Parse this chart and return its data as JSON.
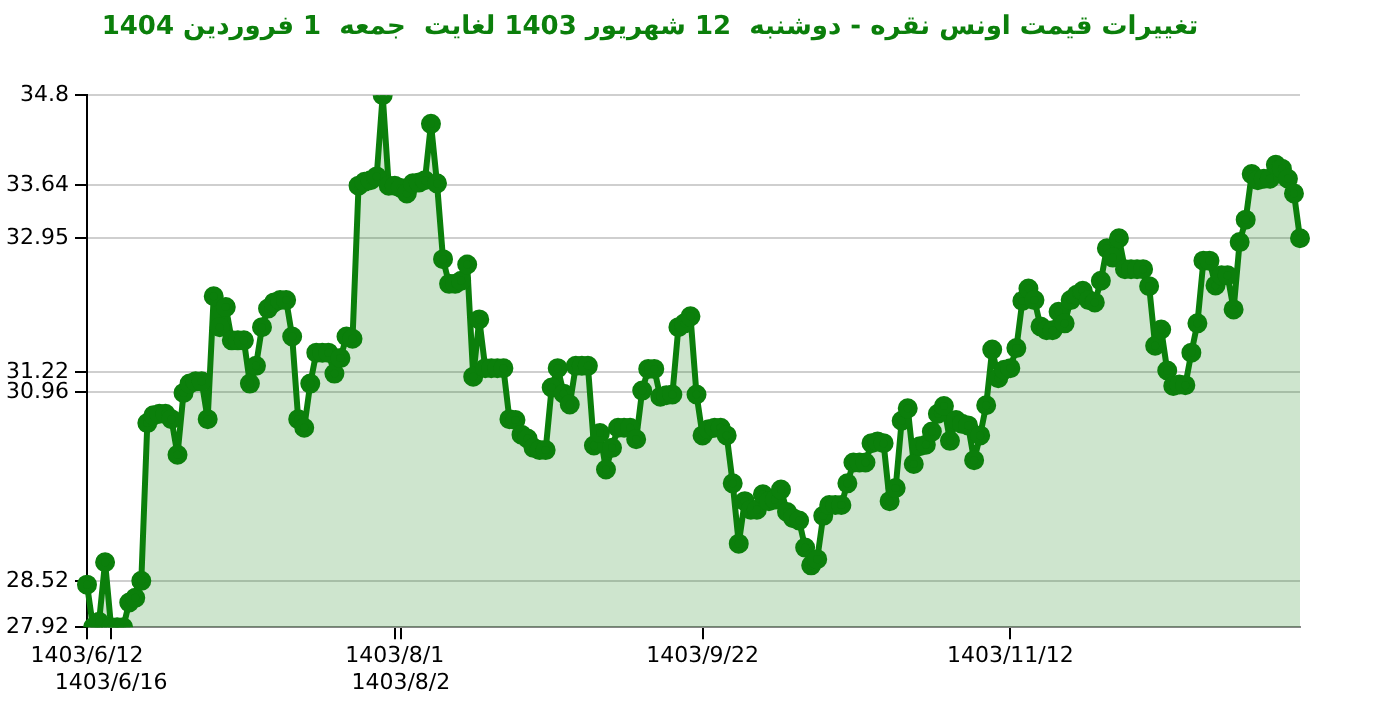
{
  "chart_data": {
    "type": "area",
    "title": "تغییرات قیمت اونس نقره - دوشنبه  12 شهریور 1403 لغایت  جمعه  1 فروردین 1404",
    "categories": [
      "1403/6/12",
      null,
      null,
      null,
      "1403/6/16",
      null,
      null,
      null,
      null,
      null,
      null,
      null,
      null,
      null,
      null,
      null,
      null,
      null,
      null,
      null,
      null,
      null,
      null,
      null,
      null,
      null,
      null,
      null,
      null,
      null,
      null,
      null,
      null,
      null,
      null,
      null,
      null,
      null,
      null,
      null,
      null,
      null,
      null,
      null,
      null,
      null,
      null,
      null,
      null,
      null,
      null,
      "1403/8/1",
      "1403/8/2",
      null,
      null,
      null,
      null,
      null,
      null,
      null,
      null,
      null,
      null,
      null,
      null,
      null,
      null,
      null,
      null,
      null,
      null,
      null,
      null,
      null,
      null,
      null,
      null,
      null,
      null,
      null,
      null,
      null,
      null,
      null,
      null,
      null,
      null,
      null,
      null,
      null,
      null,
      null,
      null,
      null,
      null,
      null,
      null,
      null,
      null,
      null,
      null,
      null,
      "1403/9/22",
      null,
      null,
      null,
      null,
      null,
      null,
      null,
      null,
      null,
      null,
      null,
      null,
      null,
      null,
      null,
      null,
      null,
      null,
      null,
      null,
      null,
      null,
      null,
      null,
      null,
      null,
      null,
      null,
      null,
      null,
      null,
      null,
      null,
      null,
      null,
      null,
      null,
      null,
      null,
      null,
      null,
      null,
      null,
      null,
      null,
      null,
      null,
      null,
      null,
      null,
      "1403/11/12",
      null,
      null,
      null,
      null,
      null,
      null,
      null,
      null,
      null,
      null,
      null,
      null,
      null,
      null,
      null,
      null,
      null,
      null,
      null,
      null,
      null,
      null,
      null,
      null,
      null,
      null,
      null,
      null,
      null,
      null,
      null,
      null,
      null,
      null,
      null,
      null,
      null,
      null,
      null,
      null,
      null,
      null,
      null,
      null,
      null,
      null,
      null,
      null
    ],
    "series": [
      {
        "color": "#0b7f0b",
        "values": [
          28.47,
          27.92,
          27.99,
          28.76,
          27.92,
          27.92,
          27.92,
          28.24,
          28.3,
          28.52,
          30.56,
          30.66,
          30.68,
          30.68,
          30.61,
          30.15,
          30.95,
          31.07,
          31.1,
          31.1,
          30.61,
          32.2,
          31.8,
          32.06,
          31.63,
          31.63,
          31.63,
          31.07,
          31.3,
          31.8,
          32.04,
          32.12,
          32.15,
          32.15,
          31.68,
          30.61,
          30.5,
          31.07,
          31.47,
          31.47,
          31.47,
          31.2,
          31.4,
          31.68,
          31.65,
          33.63,
          33.68,
          33.7,
          33.75,
          34.8,
          33.63,
          33.63,
          33.6,
          33.53,
          33.66,
          33.67,
          33.7,
          34.43,
          33.66,
          32.68,
          32.36,
          32.36,
          32.4,
          32.61,
          31.16,
          31.9,
          31.27,
          31.27,
          31.27,
          31.27,
          30.61,
          30.6,
          30.41,
          30.36,
          30.24,
          30.21,
          30.21,
          31.02,
          31.27,
          30.94,
          30.8,
          31.3,
          31.3,
          31.3,
          30.27,
          30.43,
          29.96,
          30.24,
          30.5,
          30.5,
          30.5,
          30.35,
          30.98,
          31.26,
          31.26,
          30.9,
          30.92,
          30.93,
          31.8,
          31.85,
          31.94,
          30.93,
          30.4,
          30.48,
          30.5,
          30.5,
          30.4,
          29.78,
          29.0,
          29.55,
          29.44,
          29.44,
          29.64,
          29.55,
          29.57,
          29.7,
          29.41,
          29.33,
          29.3,
          28.95,
          28.72,
          28.8,
          29.36,
          29.5,
          29.5,
          29.5,
          29.78,
          30.05,
          30.05,
          30.05,
          30.3,
          30.32,
          30.3,
          29.55,
          29.72,
          30.59,
          30.75,
          30.03,
          30.26,
          30.28,
          30.45,
          30.68,
          30.78,
          30.33,
          30.6,
          30.55,
          30.53,
          30.08,
          30.4,
          30.79,
          31.51,
          31.14,
          31.25,
          31.27,
          31.53,
          32.14,
          32.3,
          32.15,
          31.81,
          31.76,
          31.76,
          32.0,
          31.85,
          32.15,
          32.22,
          32.27,
          32.15,
          32.12,
          32.4,
          32.82,
          32.7,
          32.95,
          32.55,
          32.55,
          32.55,
          32.55,
          32.33,
          31.56,
          31.77,
          31.24,
          31.04,
          31.06,
          31.05,
          31.47,
          31.85,
          32.66,
          32.66,
          32.34,
          32.47,
          32.47,
          32.03,
          32.9,
          33.19,
          33.78,
          33.7,
          33.72,
          33.72,
          33.9,
          33.85,
          33.72,
          33.53,
          32.95
        ]
      }
    ],
    "ylim": [
      27.92,
      34.8
    ],
    "yticks": [
      27.92,
      28.52,
      30.96,
      31.22,
      32.95,
      33.64,
      34.8
    ],
    "grid": "y",
    "legend": false,
    "marker": "circle",
    "line_style": "solid"
  }
}
